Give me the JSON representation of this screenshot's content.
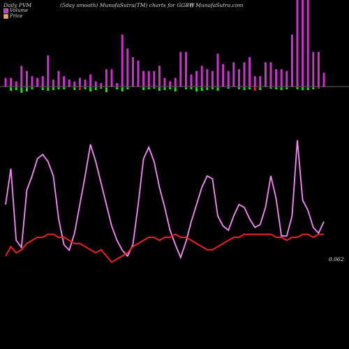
{
  "header": {
    "left": "Daily PVM",
    "center": "(5day smooth) MunafaSutra(TM) charts for GGBW",
    "right": "() MunafaSutra.com"
  },
  "legend": [
    {
      "label": "Volume",
      "color": "#cc33cc"
    },
    {
      "label": "Price",
      "color": "#f0a868"
    }
  ],
  "price_label": "0.062",
  "colors": {
    "background": "#000000",
    "volume_bar": "#cc33cc",
    "up_bar": "#22dd22",
    "down_bar": "#ee2222",
    "volume_line": "#dd66dd",
    "price_line": "#ee2222",
    "baseline": "#cccccc"
  },
  "chart_data": {
    "type": "bar",
    "volume": [
      10,
      10,
      6,
      24,
      18,
      12,
      10,
      12,
      36,
      8,
      18,
      12,
      8,
      6,
      10,
      8,
      14,
      6,
      4,
      20,
      20,
      4,
      60,
      44,
      34,
      30,
      18,
      18,
      18,
      24,
      10,
      6,
      10,
      40,
      40,
      14,
      18,
      24,
      20,
      18,
      38,
      26,
      18,
      28,
      20,
      28,
      34,
      12,
      12,
      28,
      28,
      20,
      20,
      18,
      60,
      100,
      100,
      100,
      40,
      40,
      16
    ],
    "change": [
      0,
      -5,
      -4,
      -8,
      -6,
      -3,
      0,
      -4,
      -5,
      -4,
      -3,
      -3,
      0,
      -4,
      4,
      -3,
      -6,
      -4,
      -2,
      -7,
      0,
      -3,
      -6,
      -3,
      0,
      0,
      -4,
      -3,
      -2,
      -5,
      -4,
      -3,
      -6,
      0,
      -3,
      -3,
      -6,
      -5,
      -4,
      -3,
      -5,
      0,
      -2,
      0,
      -3,
      -4,
      -3,
      5,
      -4,
      0,
      -2,
      -3,
      -4,
      -3,
      0,
      -3,
      -4,
      -4,
      -3,
      2,
      0
    ],
    "volume_line": [
      40,
      65,
      15,
      10,
      50,
      60,
      72,
      75,
      70,
      60,
      30,
      12,
      8,
      20,
      40,
      60,
      82,
      70,
      55,
      40,
      25,
      15,
      8,
      4,
      12,
      40,
      72,
      80,
      70,
      52,
      38,
      22,
      12,
      3,
      14,
      28,
      40,
      52,
      60,
      58,
      32,
      25,
      22,
      32,
      40,
      38,
      30,
      24,
      26,
      38,
      60,
      44,
      18,
      18,
      32,
      85,
      43,
      36,
      24,
      20,
      28
    ],
    "price": [
      0.0605,
      0.0608,
      0.0606,
      0.0607,
      0.0609,
      0.061,
      0.0611,
      0.0611,
      0.0612,
      0.0612,
      0.0611,
      0.0611,
      0.061,
      0.0609,
      0.0609,
      0.0608,
      0.0607,
      0.0606,
      0.0607,
      0.0605,
      0.0603,
      0.0604,
      0.0605,
      0.0606,
      0.0608,
      0.0609,
      0.061,
      0.0611,
      0.0611,
      0.061,
      0.0611,
      0.0611,
      0.0612,
      0.0611,
      0.0611,
      0.061,
      0.0609,
      0.0608,
      0.0607,
      0.0607,
      0.0608,
      0.0609,
      0.061,
      0.0611,
      0.0611,
      0.0612,
      0.0612,
      0.0612,
      0.0612,
      0.0612,
      0.0612,
      0.0611,
      0.0611,
      0.061,
      0.0611,
      0.0611,
      0.0612,
      0.0612,
      0.0611,
      0.0612,
      0.0612
    ],
    "price_ylim": [
      0.0593,
      0.062
    ]
  }
}
